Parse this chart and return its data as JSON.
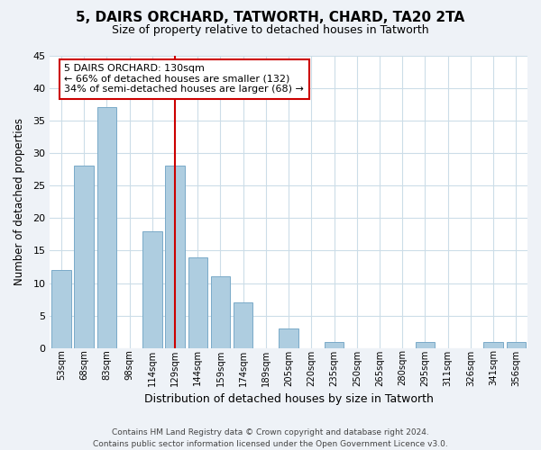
{
  "title": "5, DAIRS ORCHARD, TATWORTH, CHARD, TA20 2TA",
  "subtitle": "Size of property relative to detached houses in Tatworth",
  "xlabel": "Distribution of detached houses by size in Tatworth",
  "ylabel": "Number of detached properties",
  "bar_labels": [
    "53sqm",
    "68sqm",
    "83sqm",
    "98sqm",
    "114sqm",
    "129sqm",
    "144sqm",
    "159sqm",
    "174sqm",
    "189sqm",
    "205sqm",
    "220sqm",
    "235sqm",
    "250sqm",
    "265sqm",
    "280sqm",
    "295sqm",
    "311sqm",
    "326sqm",
    "341sqm",
    "356sqm"
  ],
  "bar_values": [
    12,
    28,
    37,
    0,
    18,
    28,
    14,
    11,
    7,
    0,
    3,
    0,
    1,
    0,
    0,
    0,
    1,
    0,
    0,
    1,
    1
  ],
  "vline_index": 5,
  "bar_color": "#aecde0",
  "bar_edge_color": "#7aaac8",
  "vline_color": "#cc0000",
  "annotation_line1": "5 DAIRS ORCHARD: 130sqm",
  "annotation_line2": "← 66% of detached houses are smaller (132)",
  "annotation_line3": "34% of semi-detached houses are larger (68) →",
  "footer_line1": "Contains HM Land Registry data © Crown copyright and database right 2024.",
  "footer_line2": "Contains public sector information licensed under the Open Government Licence v3.0.",
  "ylim": [
    0,
    45
  ],
  "yticks": [
    0,
    5,
    10,
    15,
    20,
    25,
    30,
    35,
    40,
    45
  ],
  "bg_color": "#eef2f7",
  "plot_bg_color": "#ffffff",
  "grid_color": "#ccdde8"
}
